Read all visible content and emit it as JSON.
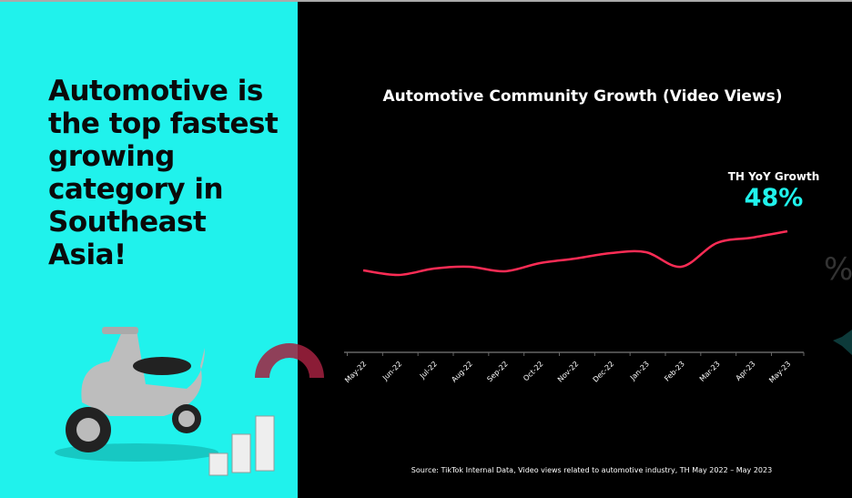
{
  "headline": "Automotive is the top fastest growing category in Southeast Asia!",
  "colors": {
    "accent": "#20f2ec",
    "line": "#fe2c55",
    "background": "#000000"
  },
  "yoy": {
    "label": "TH YoY Growth",
    "value": "48%"
  },
  "source": "Source:  TikTok Internal Data, Video views related to automotive industry, TH May 2022 – May 2023",
  "chart_data": {
    "type": "line",
    "title": "Automotive Community Growth (Video Views)",
    "categories": [
      "May-22",
      "Jun-22",
      "Jul-22",
      "Aug-22",
      "Sep-22",
      "Oct-22",
      "Nov-22",
      "Dec-22",
      "Jan-23",
      "Feb-23",
      "Mar-23",
      "Apr-23",
      "May-23"
    ],
    "series": [
      {
        "values": [
          90,
          85,
          92,
          94,
          89,
          98,
          103,
          109,
          110,
          94,
          120,
          126,
          133
        ]
      }
    ],
    "ylim": [
      0,
      140
    ],
    "grid": false,
    "y_axis_visible": false
  }
}
